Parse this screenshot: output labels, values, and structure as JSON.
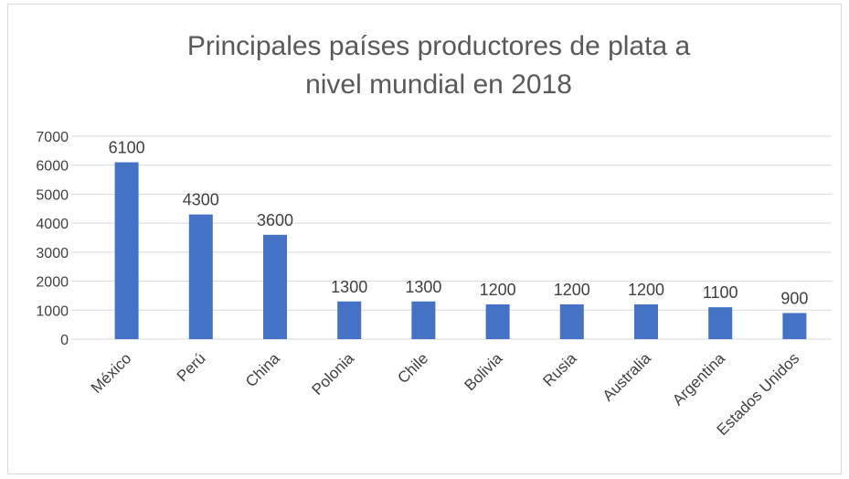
{
  "chart_data": {
    "type": "bar",
    "title": "Principales países productores de plata a nivel mundial en 2018",
    "categories": [
      "México",
      "Perú",
      "China",
      "Polonia",
      "Chile",
      "Bolivia",
      "Rusia",
      "Australia",
      "Argentina",
      "Estados Unidos"
    ],
    "values": [
      6100,
      4300,
      3600,
      1300,
      1300,
      1200,
      1200,
      1200,
      1100,
      900
    ],
    "color": "#4472c4",
    "ylim": [
      0,
      7000
    ],
    "yticks": [
      0,
      1000,
      2000,
      3000,
      4000,
      5000,
      6000,
      7000
    ],
    "grid": true
  }
}
